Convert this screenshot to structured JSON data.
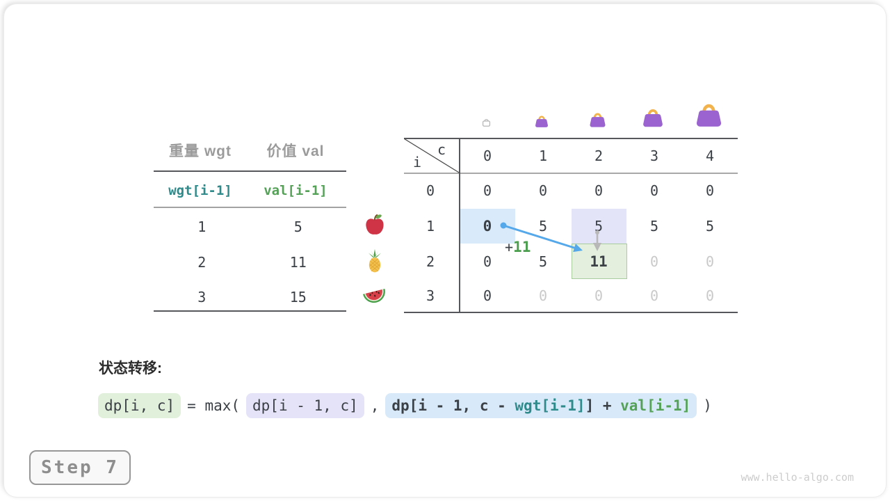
{
  "colors": {
    "dark_text": "#3b4046",
    "muted_text": "#c9c9c9",
    "header_gray": "#9b9b9b",
    "teal": "#2f8b8b",
    "green": "#55a158",
    "annotation_green": "#4c9e4f",
    "arrow_blue": "#55a8ea",
    "arrow_gray": "#b8b8b8",
    "highlight_blue": "#d9eafb",
    "highlight_lavender": "#e4e4f8",
    "highlight_green": "#e4f0dd",
    "highlight_green_border": "#a8cc9e",
    "bag_purple": "#9a63d0",
    "bag_handle_orange": "#f2b24c"
  },
  "items_table": {
    "col_headers": [
      "重量 wgt",
      "价值 val"
    ],
    "array_labels": [
      "wgt[i-1]",
      "val[i-1]"
    ],
    "rows": [
      {
        "wgt": "1",
        "val": "5",
        "icon": "apple-icon"
      },
      {
        "wgt": "2",
        "val": "11",
        "icon": "pineapple-icon"
      },
      {
        "wgt": "3",
        "val": "15",
        "icon": "watermelon-icon"
      }
    ]
  },
  "dp_table": {
    "corner": {
      "col_var": "c",
      "row_var": "i"
    },
    "col_headers": [
      "0",
      "1",
      "2",
      "3",
      "4"
    ],
    "row_headers": [
      "0",
      "1",
      "2",
      "3"
    ],
    "capacity_icons": [
      "bag-empty-icon",
      "bag-icon-1",
      "bag-icon-2",
      "bag-icon-3",
      "bag-icon-4"
    ],
    "cells": [
      [
        "0",
        "0",
        "0",
        "0",
        "0"
      ],
      [
        "0",
        "5",
        "5",
        "5",
        "5"
      ],
      [
        "0",
        "5",
        "11",
        "0",
        "0"
      ],
      [
        "0",
        "0",
        "0",
        "0",
        "0"
      ]
    ],
    "muted_cells": [
      [
        2,
        3
      ],
      [
        2,
        4
      ],
      [
        3,
        1
      ],
      [
        3,
        2
      ],
      [
        3,
        3
      ],
      [
        3,
        4
      ]
    ],
    "bold_cells": [
      [
        1,
        0
      ],
      [
        2,
        2
      ]
    ],
    "highlights": [
      {
        "row": 1,
        "col": 0,
        "style": "blue"
      },
      {
        "row": 1,
        "col": 2,
        "style": "lavender"
      },
      {
        "row": 2,
        "col": 2,
        "style": "green"
      }
    ],
    "annotation": {
      "prefix": "+",
      "value": "11"
    }
  },
  "transition": {
    "label": "状态转移:",
    "lhs": "dp[i, c]",
    "operator": "= max(",
    "arg1": "dp[i - 1, c]",
    "separator": ",",
    "arg2": {
      "head": "dp[i - 1, c - ",
      "wgt": "wgt[i-1]",
      "mid": "] + ",
      "val": "val[i-1]"
    },
    "close": ")"
  },
  "footer": {
    "step_label": "Step 7",
    "watermark": "www.hello-algo.com"
  }
}
